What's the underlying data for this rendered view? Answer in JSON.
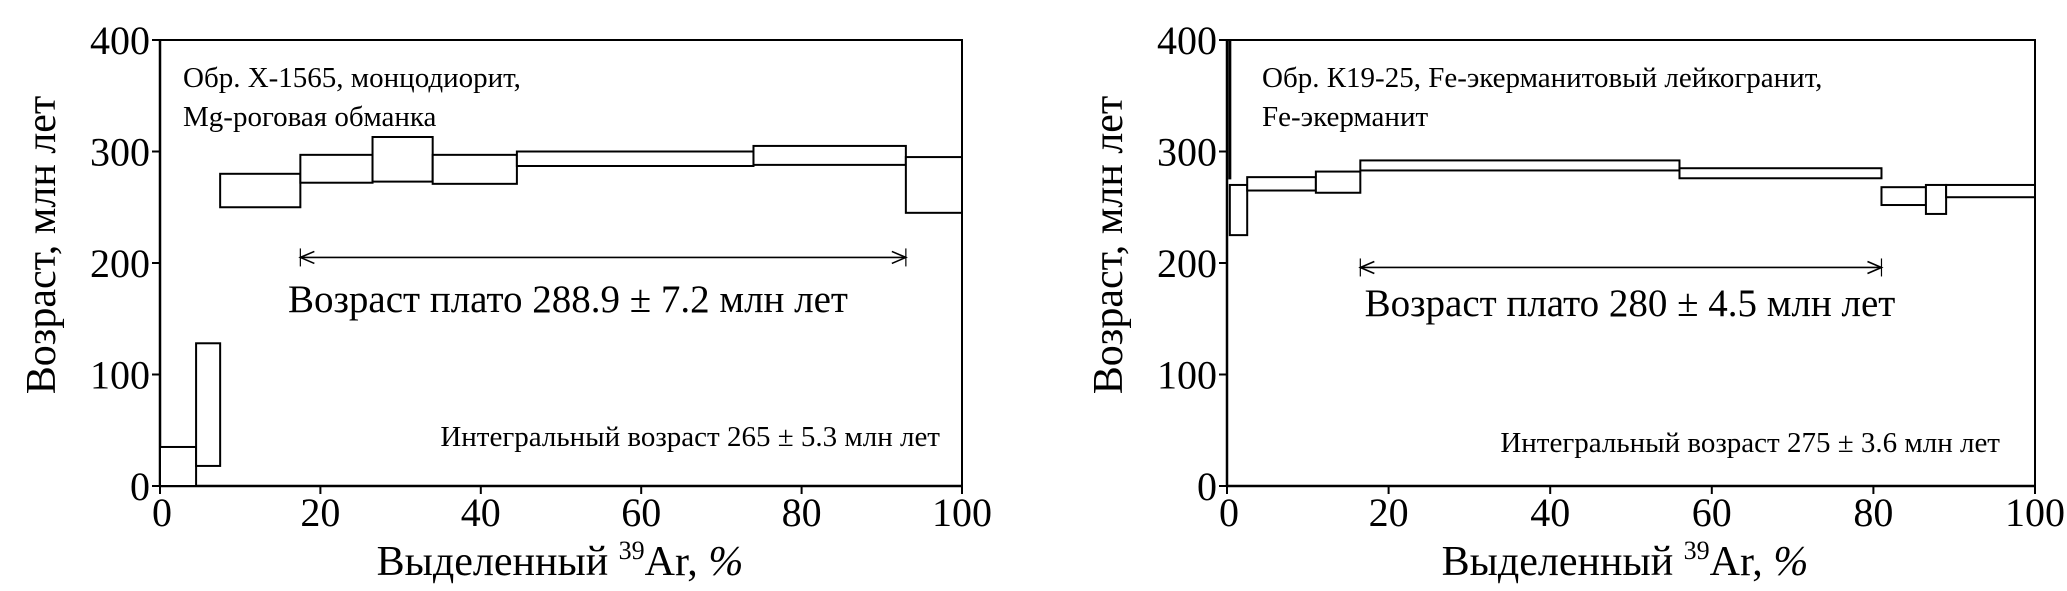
{
  "chart_data": [
    {
      "type": "step",
      "sample_lines": [
        "Обр. Х-1565, монцодиорит,",
        "Mg-роговая обманка"
      ],
      "ylabel": "Возраст, млн лет",
      "xlabel_parts": {
        "pre": "Выделенный ",
        "sup": "39",
        "post": "Ar, %"
      },
      "xlim": [
        0,
        100
      ],
      "ylim": [
        0,
        400
      ],
      "xticks": [
        0,
        20,
        40,
        60,
        80,
        100
      ],
      "yticks": [
        0,
        100,
        200,
        300,
        400
      ],
      "plateau_label": "Возраст плато 288.9 ± 7.2 млн лет",
      "plateau_range": [
        17.5,
        93.0
      ],
      "plateau_arrow_y": 205,
      "integral_label": "Интегральный возраст 265 ± 5.3 млн лет",
      "steps": [
        {
          "x0": 0,
          "x1": 4.5,
          "lo": 0,
          "hi": 35
        },
        {
          "x0": 4.5,
          "x1": 7.5,
          "lo": 18,
          "hi": 128
        },
        {
          "x0": 7.5,
          "x1": 17.5,
          "lo": 250,
          "hi": 280
        },
        {
          "x0": 17.5,
          "x1": 26.5,
          "lo": 272,
          "hi": 297
        },
        {
          "x0": 26.5,
          "x1": 34,
          "lo": 273,
          "hi": 313
        },
        {
          "x0": 34,
          "x1": 44.5,
          "lo": 271,
          "hi": 297
        },
        {
          "x0": 44.5,
          "x1": 74,
          "lo": 287,
          "hi": 300
        },
        {
          "x0": 74,
          "x1": 93,
          "lo": 288,
          "hi": 305
        },
        {
          "x0": 93,
          "x1": 100,
          "lo": 245,
          "hi": 295
        }
      ]
    },
    {
      "type": "step",
      "sample_lines": [
        "Обр. К19-25, Fe-экерманитовый лейкогранит,",
        "Fe-экерманит"
      ],
      "ylabel": "Возраст, млн лет",
      "xlabel_parts": {
        "pre": "Выделенный ",
        "sup": "39",
        "post": "Ar, %"
      },
      "xlim": [
        0,
        100
      ],
      "ylim": [
        0,
        400
      ],
      "xticks": [
        0,
        20,
        40,
        60,
        80,
        100
      ],
      "yticks": [
        0,
        100,
        200,
        300,
        400
      ],
      "plateau_label": "Возраст плато 280 ± 4.5 млн лет",
      "plateau_range": [
        16.5,
        81.0
      ],
      "plateau_arrow_y": 196,
      "integral_label": "Интегральный возраст 275 ± 3.6 млн лет",
      "spike": {
        "x": 0.35,
        "lo": 275,
        "hi": 400
      },
      "steps": [
        {
          "x0": 0.35,
          "x1": 2.5,
          "lo": 225,
          "hi": 270
        },
        {
          "x0": 2.5,
          "x1": 11,
          "lo": 265,
          "hi": 277
        },
        {
          "x0": 11,
          "x1": 16.5,
          "lo": 263,
          "hi": 282
        },
        {
          "x0": 16.5,
          "x1": 56,
          "lo": 283,
          "hi": 292
        },
        {
          "x0": 56,
          "x1": 81,
          "lo": 276,
          "hi": 285
        },
        {
          "x0": 81,
          "x1": 86.5,
          "lo": 252,
          "hi": 268
        },
        {
          "x0": 86.5,
          "x1": 89,
          "lo": 244,
          "hi": 270
        },
        {
          "x0": 89,
          "x1": 100,
          "lo": 259,
          "hi": 270
        }
      ]
    }
  ]
}
